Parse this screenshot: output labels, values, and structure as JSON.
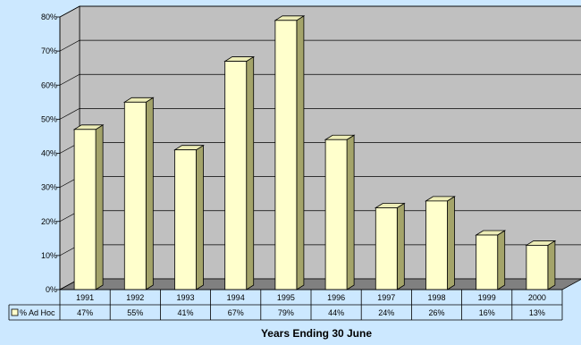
{
  "chart_data": {
    "type": "bar",
    "style": "3d-column",
    "categories": [
      "1991",
      "1992",
      "1993",
      "1994",
      "1995",
      "1996",
      "1997",
      "1998",
      "1999",
      "2000"
    ],
    "series": [
      {
        "name": "% Ad Hoc",
        "values": [
          47,
          55,
          41,
          67,
          79,
          44,
          24,
          26,
          16,
          13
        ],
        "value_labels": [
          "47%",
          "55%",
          "41%",
          "67%",
          "79%",
          "44%",
          "24%",
          "26%",
          "16%",
          "13%"
        ],
        "color": "#ffffcc"
      }
    ],
    "y_ticks": [
      "0%",
      "10%",
      "20%",
      "30%",
      "40%",
      "50%",
      "60%",
      "70%",
      "80%"
    ],
    "ylim": [
      0,
      80
    ],
    "xlabel": "Years Ending 30 June",
    "ylabel": "",
    "title": "",
    "grid": true,
    "legend": "data-table",
    "colors": {
      "background": "#cce8ff",
      "wall": "#c0c0c0",
      "floor": "#808080",
      "bar_front": "#ffffcc",
      "bar_side": "#a4a46a",
      "bar_top": "#ececb6"
    }
  }
}
